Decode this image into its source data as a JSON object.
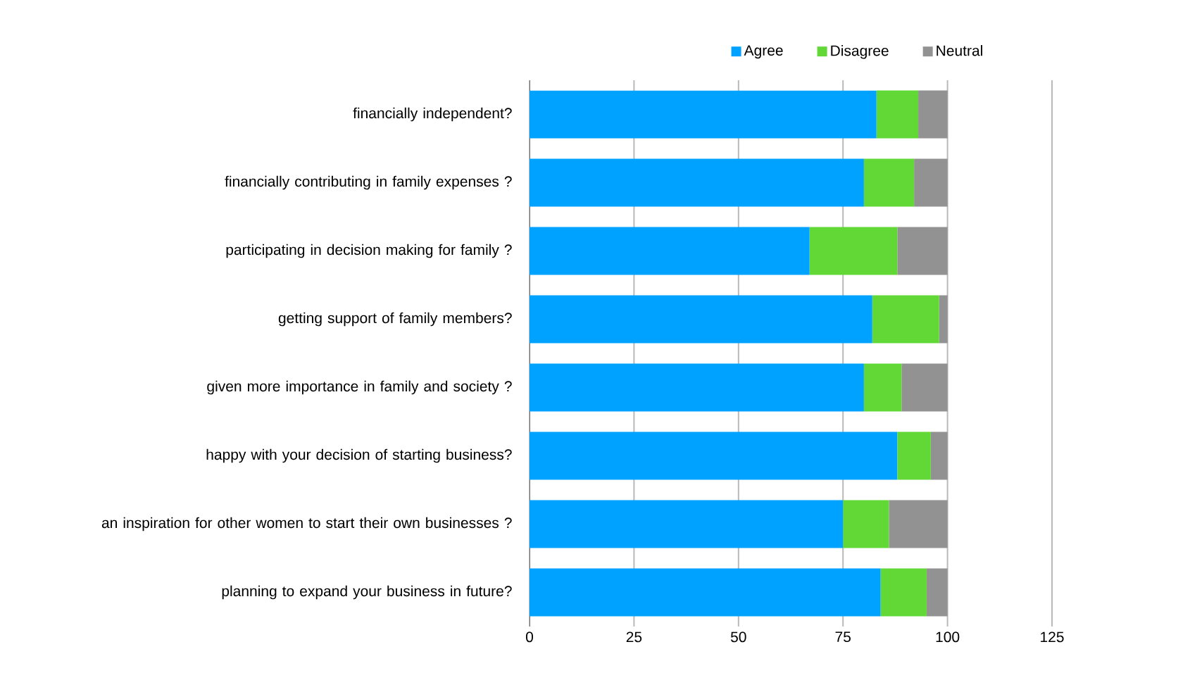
{
  "chart_data": {
    "type": "bar",
    "orientation": "horizontal",
    "stacked": true,
    "categories": [
      "financially independent?",
      "financially contributing in family expenses ?",
      "participating in decision making for family ?",
      "getting support of family members?",
      "given more importance in family and society ?",
      "happy with your decision of starting business?",
      "an inspiration for other women to start their own businesses ?",
      "planning to expand your business in future?"
    ],
    "series": [
      {
        "name": "Agree",
        "color": "#00a2ff",
        "values": [
          83,
          80,
          67,
          82,
          80,
          88,
          75,
          84
        ]
      },
      {
        "name": "Disagree",
        "color": "#62d836",
        "values": [
          10,
          12,
          21,
          16,
          9,
          8,
          11,
          11
        ]
      },
      {
        "name": "Neutral",
        "color": "#929292",
        "values": [
          7,
          8,
          12,
          2,
          11,
          4,
          14,
          5
        ]
      }
    ],
    "xlim": [
      0,
      125
    ],
    "xticks": [
      0,
      25,
      50,
      75,
      100,
      125
    ],
    "grid": "x",
    "legend": "top"
  }
}
